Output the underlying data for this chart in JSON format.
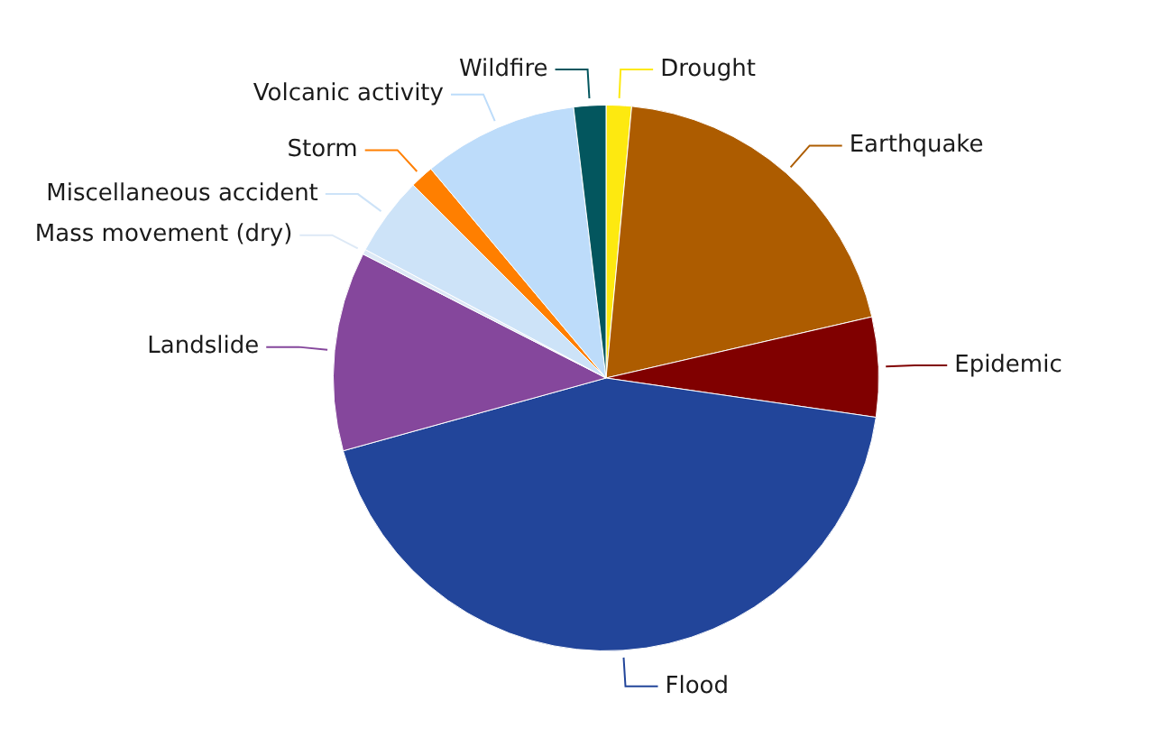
{
  "chart_data": {
    "type": "pie",
    "categories": [
      "Drought",
      "Earthquake",
      "Epidemic",
      "Flood",
      "Landslide",
      "Mass movement (dry)",
      "Miscellaneous accident",
      "Storm",
      "Volcanic activity",
      "Wildfire"
    ],
    "values": [
      1.5,
      19.9,
      5.9,
      43.4,
      11.8,
      0.3,
      4.7,
      1.4,
      9.2,
      1.9
    ],
    "colors": [
      "#fde910",
      "#ad5c00",
      "#800000",
      "#22459a",
      "#85479c",
      "#dde9f6",
      "#cde3f8",
      "#ff7f00",
      "#bddcfa",
      "#03565e"
    ],
    "legend": false
  }
}
